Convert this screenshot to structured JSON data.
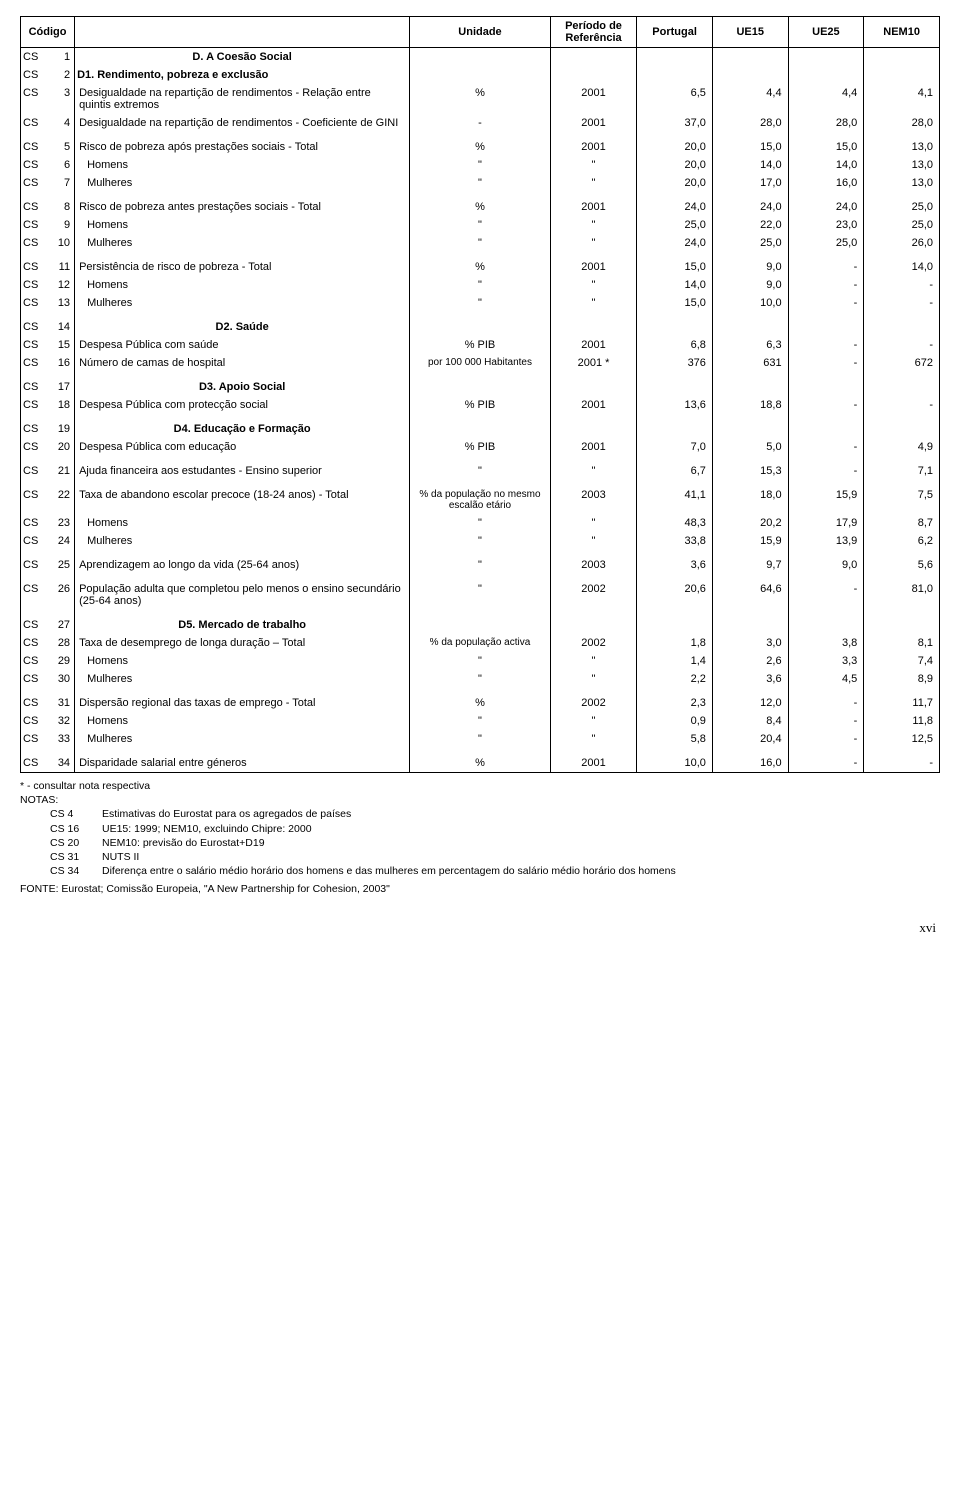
{
  "header": {
    "codigo": "Código",
    "unidade": "Unidade",
    "periodo": "Período de Referência",
    "c1": "Portugal",
    "c2": "UE15",
    "c3": "UE25",
    "c4": "NEM10"
  },
  "rows": [
    {
      "type": "section",
      "code1": "CS",
      "code2": "1",
      "label": "D. A Coesão Social"
    },
    {
      "type": "section_left",
      "code1": "CS",
      "code2": "2",
      "label": "D1. Rendimento, pobreza e exclusão"
    },
    {
      "type": "data",
      "code1": "CS",
      "code2": "3",
      "label": "Desigualdade na repartição de rendimentos - Relação entre quintis extremos",
      "unit": "%",
      "period": "2001",
      "v": [
        "6,5",
        "4,4",
        "4,4",
        "4,1"
      ]
    },
    {
      "type": "data",
      "code1": "CS",
      "code2": "4",
      "label": "Desigualdade na repartição de rendimentos - Coeficiente de GINI",
      "unit": "-",
      "period": "2001",
      "v": [
        "37,0",
        "28,0",
        "28,0",
        "28,0"
      ]
    },
    {
      "type": "spacer"
    },
    {
      "type": "data",
      "code1": "CS",
      "code2": "5",
      "label": "Risco de pobreza após prestações sociais - Total",
      "unit": "%",
      "period": "2001",
      "v": [
        "20,0",
        "15,0",
        "15,0",
        "13,0"
      ]
    },
    {
      "type": "data",
      "code1": "CS",
      "code2": "6",
      "label": "Homens",
      "indent": true,
      "unit": "\"",
      "period": "\"",
      "v": [
        "20,0",
        "14,0",
        "14,0",
        "13,0"
      ]
    },
    {
      "type": "data",
      "code1": "CS",
      "code2": "7",
      "label": "Mulheres",
      "indent": true,
      "unit": "\"",
      "period": "\"",
      "v": [
        "20,0",
        "17,0",
        "16,0",
        "13,0"
      ]
    },
    {
      "type": "spacer"
    },
    {
      "type": "data",
      "code1": "CS",
      "code2": "8",
      "label": "Risco de pobreza antes prestações sociais - Total",
      "unit": "%",
      "period": "2001",
      "v": [
        "24,0",
        "24,0",
        "24,0",
        "25,0"
      ]
    },
    {
      "type": "data",
      "code1": "CS",
      "code2": "9",
      "label": "Homens",
      "indent": true,
      "unit": "\"",
      "period": "\"",
      "v": [
        "25,0",
        "22,0",
        "23,0",
        "25,0"
      ]
    },
    {
      "type": "data",
      "code1": "CS",
      "code2": "10",
      "label": "Mulheres",
      "indent": true,
      "unit": "\"",
      "period": "\"",
      "v": [
        "24,0",
        "25,0",
        "25,0",
        "26,0"
      ]
    },
    {
      "type": "spacer"
    },
    {
      "type": "data",
      "code1": "CS",
      "code2": "11",
      "label": "Persistência de risco de pobreza - Total",
      "unit": "%",
      "period": "2001",
      "v": [
        "15,0",
        "9,0",
        "-",
        "14,0"
      ]
    },
    {
      "type": "data",
      "code1": "CS",
      "code2": "12",
      "label": "Homens",
      "indent": true,
      "unit": "\"",
      "period": "\"",
      "v": [
        "14,0",
        "9,0",
        "-",
        "-"
      ]
    },
    {
      "type": "data",
      "code1": "CS",
      "code2": "13",
      "label": "Mulheres",
      "indent": true,
      "unit": "\"",
      "period": "\"",
      "v": [
        "15,0",
        "10,0",
        "-",
        "-"
      ]
    },
    {
      "type": "spacer"
    },
    {
      "type": "section",
      "code1": "CS",
      "code2": "14",
      "label": "D2. Saúde"
    },
    {
      "type": "data",
      "code1": "CS",
      "code2": "15",
      "label": "Despesa Pública com saúde",
      "unit": "% PIB",
      "period": "2001",
      "v": [
        "6,8",
        "6,3",
        "-",
        "-"
      ]
    },
    {
      "type": "data",
      "code1": "CS",
      "code2": "16",
      "label": "Número de camas de hospital",
      "unit": "por 100 000 Habitantes",
      "period": "2001 *",
      "v": [
        "376",
        "631",
        "-",
        "672"
      ]
    },
    {
      "type": "spacer"
    },
    {
      "type": "section",
      "code1": "CS",
      "code2": "17",
      "label": "D3. Apoio Social"
    },
    {
      "type": "data",
      "code1": "CS",
      "code2": "18",
      "label": "Despesa Pública com protecção social",
      "unit": "% PIB",
      "period": "2001",
      "v": [
        "13,6",
        "18,8",
        "-",
        "-"
      ]
    },
    {
      "type": "spacer"
    },
    {
      "type": "section",
      "code1": "CS",
      "code2": "19",
      "label": "D4. Educação e Formação"
    },
    {
      "type": "data",
      "code1": "CS",
      "code2": "20",
      "label": "Despesa Pública com educação",
      "unit": "% PIB",
      "period": "2001",
      "v": [
        "7,0",
        "5,0",
        "-",
        "4,9"
      ]
    },
    {
      "type": "spacer"
    },
    {
      "type": "data",
      "code1": "CS",
      "code2": "21",
      "label": "Ajuda financeira aos estudantes - Ensino superior",
      "unit": "\"",
      "period": "\"",
      "v": [
        "6,7",
        "15,3",
        "-",
        "7,1"
      ]
    },
    {
      "type": "spacer"
    },
    {
      "type": "data",
      "code1": "CS",
      "code2": "22",
      "label": "Taxa de abandono escolar precoce (18-24 anos) - Total",
      "unit": "% da população no mesmo escalão etário",
      "period": "2003",
      "v": [
        "41,1",
        "18,0",
        "15,9",
        "7,5"
      ]
    },
    {
      "type": "data",
      "code1": "CS",
      "code2": "23",
      "label": "Homens",
      "indent": true,
      "unit": "\"",
      "period": "\"",
      "v": [
        "48,3",
        "20,2",
        "17,9",
        "8,7"
      ]
    },
    {
      "type": "data",
      "code1": "CS",
      "code2": "24",
      "label": "Mulheres",
      "indent": true,
      "unit": "\"",
      "period": "\"",
      "v": [
        "33,8",
        "15,9",
        "13,9",
        "6,2"
      ]
    },
    {
      "type": "spacer"
    },
    {
      "type": "data",
      "code1": "CS",
      "code2": "25",
      "label": "Aprendizagem ao longo da vida (25-64 anos)",
      "unit": "\"",
      "period": "2003",
      "v": [
        "3,6",
        "9,7",
        "9,0",
        "5,6"
      ]
    },
    {
      "type": "spacer"
    },
    {
      "type": "data",
      "code1": "CS",
      "code2": "26",
      "label": "População adulta que completou pelo menos o ensino secundário (25-64 anos)",
      "unit": "\"",
      "period": "2002",
      "v": [
        "20,6",
        "64,6",
        "-",
        "81,0"
      ]
    },
    {
      "type": "spacer"
    },
    {
      "type": "section",
      "code1": "CS",
      "code2": "27",
      "label": "D5. Mercado de trabalho"
    },
    {
      "type": "data",
      "code1": "CS",
      "code2": "28",
      "label": "Taxa de desemprego de longa duração – Total",
      "unit": "% da população activa",
      "period": "2002",
      "v": [
        "1,8",
        "3,0",
        "3,8",
        "8,1"
      ]
    },
    {
      "type": "data",
      "code1": "CS",
      "code2": "29",
      "label": "Homens",
      "indent": true,
      "unit": "\"",
      "period": "\"",
      "v": [
        "1,4",
        "2,6",
        "3,3",
        "7,4"
      ]
    },
    {
      "type": "data",
      "code1": "CS",
      "code2": "30",
      "label": "Mulheres",
      "indent": true,
      "unit": "\"",
      "period": "\"",
      "v": [
        "2,2",
        "3,6",
        "4,5",
        "8,9"
      ]
    },
    {
      "type": "spacer"
    },
    {
      "type": "data",
      "code1": "CS",
      "code2": "31",
      "label": "Dispersão regional das taxas de emprego - Total",
      "unit": "%",
      "period": "2002",
      "v": [
        "2,3",
        "12,0",
        "-",
        "11,7"
      ]
    },
    {
      "type": "data",
      "code1": "CS",
      "code2": "32",
      "label": "Homens",
      "indent": true,
      "unit": "\"",
      "period": "\"",
      "v": [
        "0,9",
        "8,4",
        "-",
        "11,8"
      ]
    },
    {
      "type": "data",
      "code1": "CS",
      "code2": "33",
      "label": "Mulheres",
      "indent": true,
      "unit": "\"",
      "period": "\"",
      "v": [
        "5,8",
        "20,4",
        "-",
        "12,5"
      ]
    },
    {
      "type": "spacer"
    },
    {
      "type": "data",
      "code1": "CS",
      "code2": "34",
      "label": "Disparidade salarial entre géneros",
      "unit": "%",
      "period": "2001",
      "v": [
        "10,0",
        "16,0",
        "-",
        "-"
      ]
    }
  ],
  "footnotes": {
    "star": "* - consultar nota respectiva",
    "notas_heading": "NOTAS:",
    "items": [
      {
        "code": "CS   4",
        "text": "Estimativas do Eurostat para os agregados de países"
      },
      {
        "code": "CS 16",
        "text": "UE15: 1999; NEM10, excluindo Chipre: 2000"
      },
      {
        "code": "CS 20",
        "text": "NEM10: previsão do Eurostat+D19"
      },
      {
        "code": "CS 31",
        "text": "NUTS II"
      },
      {
        "code": "CS 34",
        "text": "Diferença entre o salário médio horário dos homens e das mulheres em percentagem do salário médio horário dos homens"
      }
    ],
    "fonte": "FONTE: Eurostat; Comissão Europeia, \"A New Partnership for Cohesion, 2003\""
  },
  "page_number": "xvi"
}
